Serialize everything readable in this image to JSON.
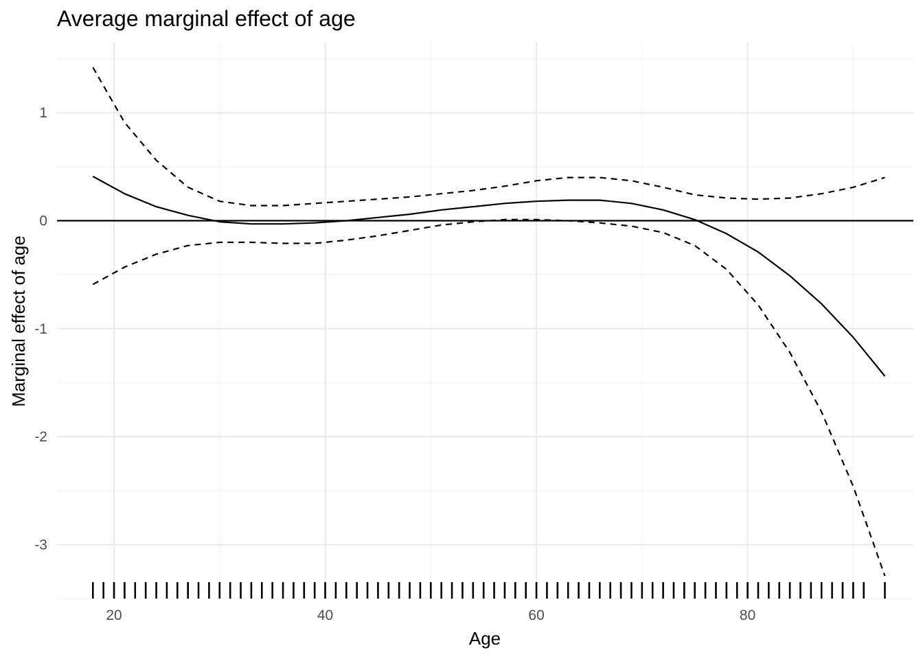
{
  "chart_data": {
    "type": "line",
    "title": "Average marginal effect of age",
    "xlabel": "Age",
    "ylabel": "Marginal effect of age",
    "xlim": [
      14.6,
      95.7
    ],
    "ylim": [
      -3.5,
      1.65
    ],
    "x_ticks": [
      20,
      40,
      60,
      80
    ],
    "y_ticks": [
      -3,
      -2,
      -1,
      0,
      1
    ],
    "x_tick_labels": [
      "20",
      "40",
      "60",
      "80"
    ],
    "y_tick_labels": [
      "-3",
      "-2",
      "-1",
      "0",
      "1"
    ],
    "grid": true,
    "reference_line_y": 0,
    "series": [
      {
        "role": "estimate",
        "style": "solid",
        "x": [
          18,
          21,
          24,
          27,
          30,
          33,
          36,
          39,
          42,
          45,
          48,
          51,
          54,
          57,
          60,
          63,
          66,
          69,
          72,
          75,
          78,
          81,
          84,
          87,
          90,
          93
        ],
        "y": [
          0.41,
          0.25,
          0.13,
          0.05,
          -0.01,
          -0.03,
          -0.03,
          -0.02,
          0.0,
          0.03,
          0.06,
          0.1,
          0.13,
          0.16,
          0.18,
          0.19,
          0.19,
          0.16,
          0.1,
          0.01,
          -0.12,
          -0.29,
          -0.51,
          -0.77,
          -1.08,
          -1.44
        ]
      },
      {
        "role": "upper-ci",
        "style": "dashed",
        "x": [
          18,
          21,
          24,
          27,
          30,
          33,
          36,
          39,
          42,
          45,
          48,
          51,
          54,
          57,
          60,
          63,
          66,
          69,
          72,
          75,
          78,
          81,
          84,
          87,
          90,
          93
        ],
        "y": [
          1.42,
          0.91,
          0.56,
          0.31,
          0.18,
          0.14,
          0.14,
          0.16,
          0.18,
          0.2,
          0.22,
          0.25,
          0.28,
          0.32,
          0.37,
          0.4,
          0.4,
          0.37,
          0.31,
          0.24,
          0.21,
          0.2,
          0.21,
          0.25,
          0.31,
          0.4
        ]
      },
      {
        "role": "lower-ci",
        "style": "dashed",
        "x": [
          18,
          21,
          24,
          27,
          30,
          33,
          36,
          39,
          42,
          45,
          48,
          51,
          54,
          57,
          60,
          63,
          66,
          69,
          72,
          75,
          78,
          81,
          84,
          87,
          90,
          93
        ],
        "y": [
          -0.59,
          -0.43,
          -0.31,
          -0.23,
          -0.2,
          -0.2,
          -0.21,
          -0.21,
          -0.18,
          -0.14,
          -0.09,
          -0.04,
          -0.01,
          0.01,
          0.01,
          0.0,
          -0.02,
          -0.05,
          -0.11,
          -0.23,
          -0.45,
          -0.78,
          -1.22,
          -1.77,
          -2.46,
          -3.29
        ]
      }
    ],
    "rug": [
      18,
      19,
      20,
      21,
      22,
      23,
      24,
      25,
      26,
      27,
      28,
      29,
      30,
      31,
      32,
      33,
      34,
      35,
      36,
      37,
      38,
      39,
      40,
      41,
      42,
      43,
      44,
      45,
      46,
      47,
      48,
      49,
      50,
      51,
      52,
      53,
      54,
      55,
      56,
      57,
      58,
      59,
      60,
      61,
      62,
      63,
      64,
      65,
      66,
      67,
      68,
      69,
      70,
      71,
      72,
      73,
      74,
      75,
      76,
      77,
      78,
      79,
      80,
      81,
      82,
      83,
      84,
      85,
      86,
      87,
      88,
      89,
      90,
      91,
      93
    ],
    "colors": {
      "line": "#000000",
      "grid_major": "#ebebeb",
      "grid_minor": "#f3f3f3",
      "tick_text": "#4d4d4d"
    }
  }
}
